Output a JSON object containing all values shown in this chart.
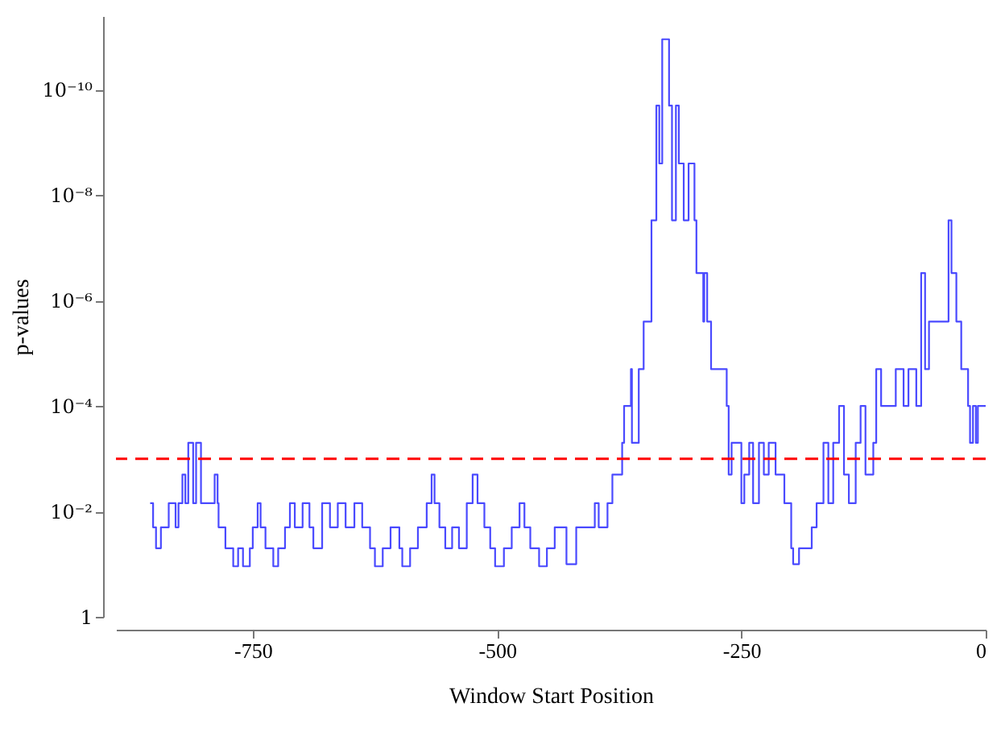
{
  "chart_data": {
    "type": "step",
    "xlabel": "Window Start Position",
    "ylabel": "p-values",
    "xlim": [
      -890,
      0
    ],
    "xticks": [
      -750,
      -500,
      -250,
      0
    ],
    "ylim": [
      1,
      4e-12
    ],
    "yticks": [
      1,
      {
        "value": 0.01,
        "label": "10⁻²"
      },
      {
        "value": 0.0001,
        "label": "10⁻⁴"
      },
      {
        "value": 1e-06,
        "label": "10⁻⁶"
      },
      {
        "value": 1e-08,
        "label": "10⁻⁸"
      },
      {
        "value": 1e-10,
        "label": "10⁻¹⁰"
      }
    ],
    "log": "y",
    "grid": false,
    "marker": "none",
    "line_style": "solid",
    "ref_lines": [
      {
        "axis": "y",
        "value": 0.001,
        "color": "#ff0000",
        "line_style": "dashed"
      }
    ],
    "x": [
      -855,
      -852,
      -849,
      -844,
      -836,
      -829,
      -826,
      -822,
      -819,
      -816,
      -811,
      -808,
      -803,
      -794,
      -789,
      -786,
      -785,
      -778,
      -770,
      -765,
      -760,
      -753,
      -750,
      -745,
      -742,
      -737,
      -729,
      -724,
      -717,
      -712,
      -707,
      -699,
      -692,
      -688,
      -679,
      -671,
      -663,
      -655,
      -646,
      -638,
      -630,
      -625,
      -617,
      -609,
      -600,
      -597,
      -589,
      -581,
      -572,
      -567,
      -564,
      -559,
      -553,
      -546,
      -539,
      -531,
      -525,
      -520,
      -513,
      -507,
      -502,
      -493,
      -485,
      -477,
      -472,
      -466,
      -457,
      -449,
      -441,
      -429,
      -419,
      -400,
      -396,
      -388,
      -387,
      -382,
      -372,
      -370,
      -363,
      -362,
      -355,
      -350,
      -342,
      -337,
      -334,
      -331,
      -326,
      -324,
      -321,
      -317,
      -314,
      -309,
      -304,
      -298,
      -296,
      -289,
      -288,
      -285,
      -281,
      -271,
      -265,
      -263,
      -260,
      -255,
      -250,
      -247,
      -242,
      -238,
      -232,
      -227,
      -222,
      -215,
      -206,
      -199,
      -197,
      -191,
      -183,
      -178,
      -173,
      -166,
      -161,
      -156,
      -150,
      -145,
      -140,
      -133,
      -128,
      -123,
      -115,
      -112,
      -107,
      -99,
      -92,
      -84,
      -79,
      -71,
      -66,
      -62,
      -58,
      -43,
      -38,
      -35,
      -30,
      -25,
      -18,
      -16,
      -13,
      -10,
      -8,
      -5,
      0
    ],
    "series": [
      {
        "color": "#4a4aff",
        "values": [
          0.007,
          0.02,
          0.05,
          0.02,
          0.007,
          0.02,
          0.007,
          0.002,
          0.007,
          0.0005,
          0.007,
          0.0005,
          0.007,
          0.007,
          0.002,
          0.007,
          0.02,
          0.05,
          0.11,
          0.05,
          0.11,
          0.05,
          0.02,
          0.007,
          0.02,
          0.05,
          0.11,
          0.05,
          0.02,
          0.007,
          0.02,
          0.007,
          0.02,
          0.05,
          0.007,
          0.02,
          0.007,
          0.02,
          0.007,
          0.02,
          0.05,
          0.11,
          0.05,
          0.02,
          0.05,
          0.11,
          0.05,
          0.02,
          0.007,
          0.002,
          0.007,
          0.02,
          0.05,
          0.02,
          0.05,
          0.007,
          0.002,
          0.007,
          0.02,
          0.05,
          0.11,
          0.05,
          0.02,
          0.007,
          0.02,
          0.05,
          0.11,
          0.05,
          0.02,
          0.1,
          0.02,
          0.007,
          0.02,
          0.02,
          0.007,
          0.002,
          0.0005,
          0.0001,
          2e-05,
          0.0005,
          2e-05,
          2.5e-06,
          3e-08,
          2e-10,
          2.5e-09,
          1.1e-11,
          1.1e-11,
          2e-10,
          3e-08,
          2e-10,
          2.5e-09,
          3e-08,
          2.5e-09,
          3e-08,
          3e-07,
          2.5e-06,
          3e-07,
          2.5e-06,
          2e-05,
          2e-05,
          0.0001,
          0.002,
          0.0005,
          0.0005,
          0.007,
          0.002,
          0.0005,
          0.007,
          0.0005,
          0.002,
          0.0005,
          0.002,
          0.007,
          0.05,
          0.1,
          0.05,
          0.05,
          0.02,
          0.007,
          0.0005,
          0.007,
          0.0005,
          0.0001,
          0.002,
          0.007,
          0.0005,
          0.0001,
          0.002,
          0.0005,
          2e-05,
          0.0001,
          0.0001,
          2e-05,
          0.0001,
          2e-05,
          0.0001,
          3e-07,
          2e-05,
          2.5e-06,
          2.5e-06,
          3e-08,
          3e-07,
          2.5e-06,
          2e-05,
          0.0001,
          0.0005,
          0.0001,
          0.0005,
          0.0001,
          0.0001,
          0.0001
        ]
      }
    ]
  }
}
